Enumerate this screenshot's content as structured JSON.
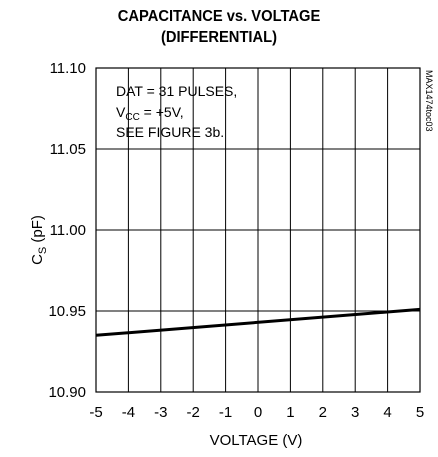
{
  "chart_data": {
    "type": "line",
    "title_line1": "CAPACITANCE vs. VOLTAGE",
    "title_line2": "(DIFFERENTIAL)",
    "xlabel": "VOLTAGE (V)",
    "ylabel_main": "C",
    "ylabel_sub": "S",
    "ylabel_unit": " (pF)",
    "xlim": [
      -5,
      5
    ],
    "ylim": [
      10.9,
      11.1
    ],
    "x_ticks": [
      "-5",
      "-4",
      "-3",
      "-2",
      "-1",
      "0",
      "1",
      "2",
      "3",
      "4",
      "5"
    ],
    "y_ticks": [
      "10.90",
      "10.95",
      "11.00",
      "11.05",
      "11.10"
    ],
    "grid": true,
    "series": [
      {
        "x": [
          -5,
          5
        ],
        "values": [
          10.935,
          10.951
        ]
      }
    ],
    "annotations": {
      "line1": "DAT = 31 PULSES,",
      "line2_main": "V",
      "line2_sub": "CC",
      "line2_rest": " = +5V,",
      "line3": "SEE FIGURE 3b."
    },
    "figure_code": "MAX1474toc03"
  }
}
